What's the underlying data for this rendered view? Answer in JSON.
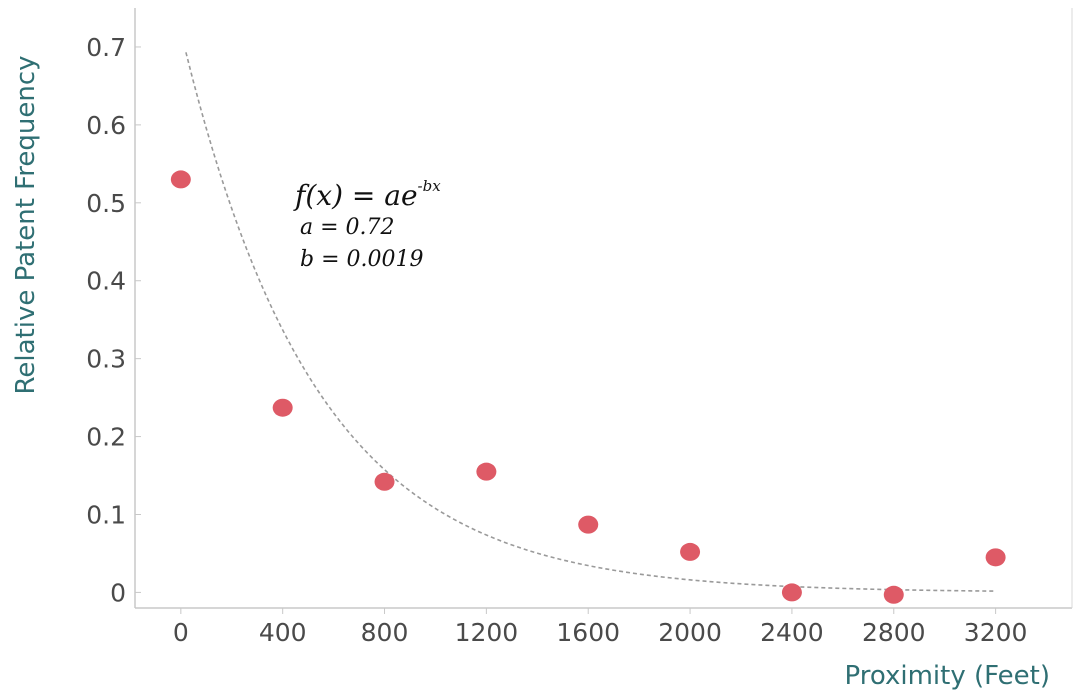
{
  "chart_data": {
    "type": "scatter",
    "xlabel": "Proximity (Feet)",
    "ylabel": "Relative Patent Frequency",
    "xlim": [
      -180,
      3500
    ],
    "ylim": [
      -0.02,
      0.75
    ],
    "x_ticks": [
      0,
      400,
      800,
      1200,
      1600,
      2000,
      2400,
      2800,
      3200
    ],
    "x_tick_labels": [
      "0",
      "400",
      "800",
      "1200",
      "1600",
      "2000",
      "2400",
      "2800",
      "3200"
    ],
    "y_ticks": [
      0,
      0.1,
      0.2,
      0.3,
      0.4,
      0.5,
      0.6,
      0.7
    ],
    "y_tick_labels": [
      "0",
      "0.1",
      "0.2",
      "0.3",
      "0.4",
      "0.5",
      "0.6",
      "0.7"
    ],
    "grid": false,
    "points": [
      {
        "x": 0,
        "y": 0.53
      },
      {
        "x": 400,
        "y": 0.237
      },
      {
        "x": 800,
        "y": 0.142
      },
      {
        "x": 1200,
        "y": 0.155
      },
      {
        "x": 1600,
        "y": 0.087
      },
      {
        "x": 2000,
        "y": 0.052
      },
      {
        "x": 2400,
        "y": 0.0
      },
      {
        "x": 2800,
        "y": -0.003
      },
      {
        "x": 3200,
        "y": 0.045
      }
    ],
    "fit_curve": {
      "style": "dashed",
      "x_start": 20,
      "x_end": 3200
    },
    "annotation": {
      "equation_base": "f(x) = ae",
      "equation_exponent": "-bx",
      "line_a": "a = 0.72",
      "line_b": "b = 0.0019"
    },
    "colors": {
      "point": "#de5a66",
      "curve": "#9a9a9a",
      "axis": "#c8c8c8",
      "tick_text": "#4a4a4a",
      "axis_title": "#2f6f73"
    }
  }
}
